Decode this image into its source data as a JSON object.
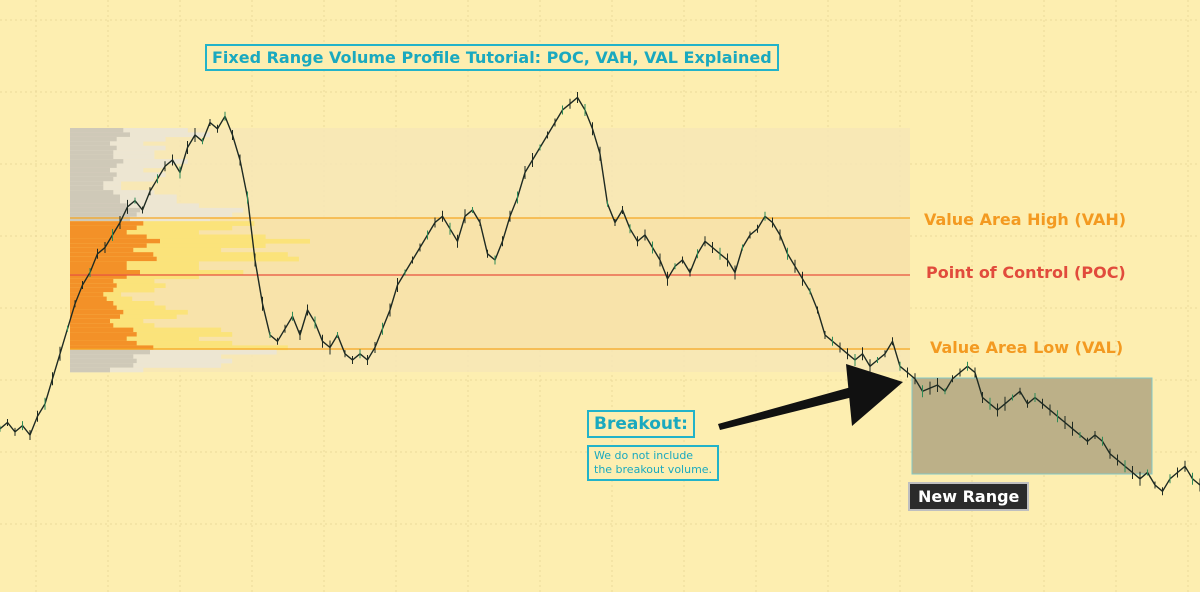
{
  "title": "Fixed Range Volume Profile Tutorial: POC, VAH, VAL Explained",
  "levels": {
    "vah_label": "Value Area High (VAH)",
    "poc_label": "Point of Control (POC)",
    "val_label": "Value Area Low (VAL)"
  },
  "breakout": {
    "heading": "Breakout:",
    "note_line1": "We do not include",
    "note_line2": "the breakout volume."
  },
  "new_range_label": "New Range",
  "colors": {
    "background": "#fdeeb0",
    "accent_cyan": "#1aa9bf",
    "vah_line": "#f5a623",
    "poc_line": "#e8503c",
    "val_line": "#f5a623",
    "value_area_volume": "#f39128",
    "outside_volume": "#cfc9b8",
    "volume_profile_light": "#fbe37a",
    "price_up": "#2e8b57",
    "price_down": "#1e2a22",
    "range_box": "#b9ad86",
    "range_box_border": "#7dc6c8",
    "arrow": "#111111",
    "new_range_bg": "#2b2b2b"
  },
  "chart_data": {
    "type": "line",
    "title": "Fixed Range Volume Profile Tutorial: POC, VAH, VAL Explained",
    "xlabel": "",
    "ylabel": "",
    "grid": true,
    "series": [
      {
        "values": [
          42,
          44,
          41,
          43,
          40,
          46,
          50,
          58,
          66,
          74,
          82,
          88,
          92,
          98,
          100,
          104,
          108,
          113,
          115,
          112,
          118,
          122,
          126,
          128,
          124,
          132,
          136,
          134,
          140,
          138,
          142,
          136,
          128,
          116,
          96,
          82,
          72,
          70,
          74,
          78,
          72,
          80,
          76,
          70,
          68,
          72,
          66,
          64,
          66,
          64,
          68,
          74,
          80,
          88,
          92,
          96,
          100,
          104,
          108,
          110,
          106,
          102,
          110,
          112,
          108,
          98,
          96,
          102,
          110,
          116,
          124,
          128,
          132,
          136,
          140,
          144,
          146,
          148,
          144,
          138,
          130,
          114,
          108,
          112,
          106,
          102,
          104,
          100,
          96,
          90,
          94,
          96,
          92,
          98,
          102,
          100,
          98,
          96,
          92,
          100,
          104,
          106,
          110,
          108,
          104,
          98,
          94,
          90,
          86,
          80,
          72,
          70,
          68,
          66,
          64,
          66,
          62,
          64,
          66,
          70,
          62,
          60,
          58,
          54,
          55,
          56,
          54,
          58,
          60,
          62,
          60,
          52,
          50,
          48,
          50,
          52,
          54,
          50,
          52,
          50,
          48,
          46,
          44,
          42,
          40,
          38,
          40,
          38,
          34,
          32,
          30,
          28,
          26,
          28,
          24,
          22,
          26,
          28,
          30,
          26,
          24
        ]
      }
    ],
    "levels": {
      "VAH": 114,
      "POC": 98,
      "VAL": 68
    },
    "ylim": [
      0,
      160
    ]
  }
}
